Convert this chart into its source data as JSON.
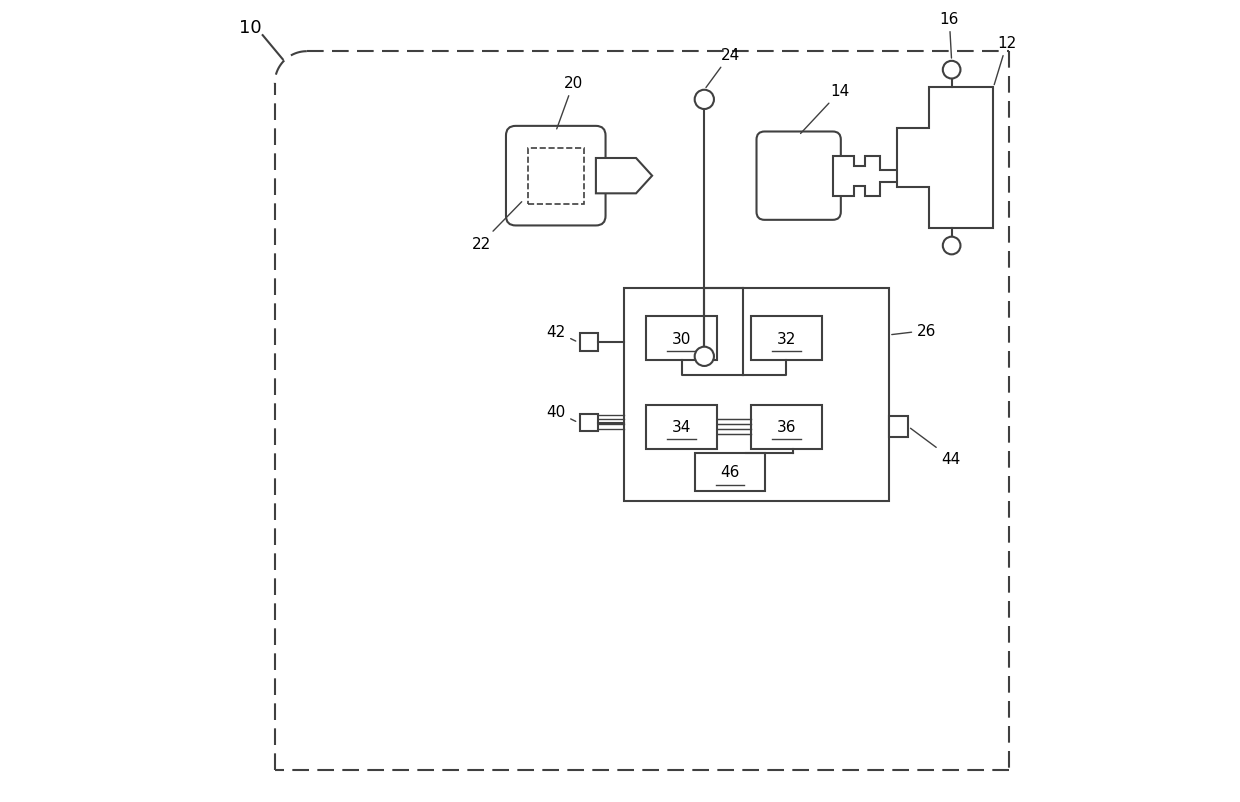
{
  "bg_color": "#ffffff",
  "line_color": "#404040",
  "label_color": "#000000",
  "fig_width": 12.4,
  "fig_height": 8.03,
  "dpi": 100
}
